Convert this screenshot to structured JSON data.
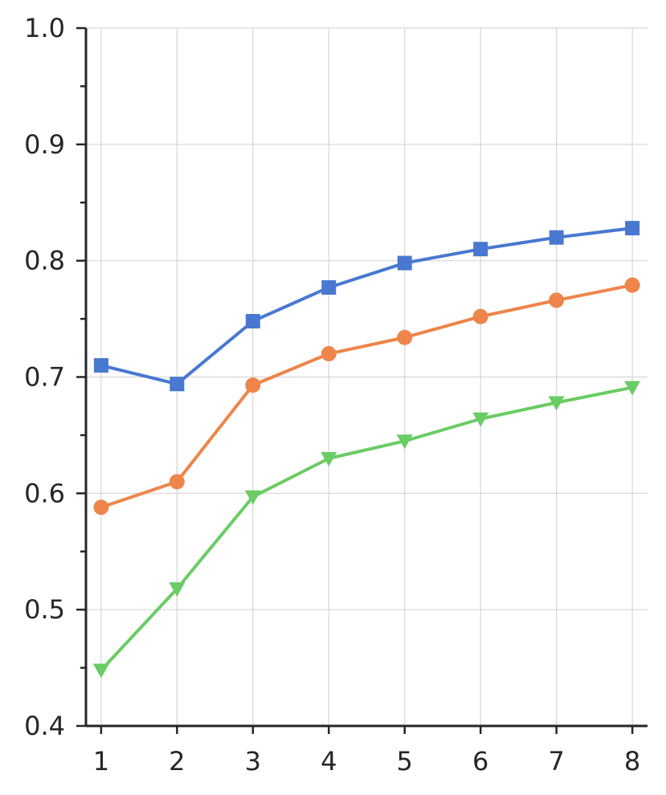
{
  "chart_data": {
    "type": "line",
    "title": "",
    "xlabel": "",
    "ylabel": "",
    "x": [
      1,
      2,
      3,
      4,
      5,
      6,
      7,
      8
    ],
    "xlim": [
      0.8,
      8.2
    ],
    "ylim": [
      0.4,
      1.0
    ],
    "x_ticks": [
      "1",
      "2",
      "3",
      "4",
      "5",
      "6",
      "7",
      "8"
    ],
    "y_ticks": [
      "0.4",
      "0.5",
      "0.6",
      "0.7",
      "0.8",
      "0.9",
      "1.0"
    ],
    "y_minor_ticks": [
      0.45,
      0.55,
      0.65,
      0.75,
      0.85,
      0.95
    ],
    "grid": true,
    "legend": "none",
    "series": [
      {
        "color": "#4878d0",
        "marker": "square",
        "values": [
          0.71,
          0.694,
          0.748,
          0.777,
          0.798,
          0.81,
          0.82,
          0.828
        ]
      },
      {
        "color": "#ee854a",
        "marker": "circle",
        "values": [
          0.588,
          0.61,
          0.693,
          0.72,
          0.734,
          0.752,
          0.766,
          0.779
        ]
      },
      {
        "color": "#6acc64",
        "marker": "triangle-down",
        "values": [
          0.448,
          0.518,
          0.597,
          0.63,
          0.645,
          0.664,
          0.678,
          0.691
        ]
      }
    ]
  }
}
